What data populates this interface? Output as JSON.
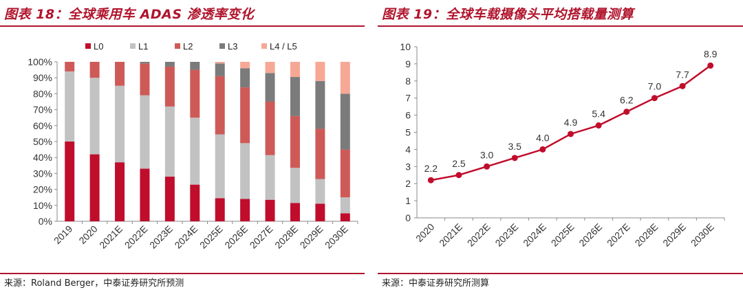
{
  "left_panel": {
    "title": "图表 18：全球乘用车 ADAS 渗透率变化",
    "source": "来源：Roland Berger，中泰证券研究所预测"
  },
  "right_panel": {
    "title": "图表 19：全球车载摄像头平均搭载量测算",
    "source": "来源：中泰证券研究所测算"
  },
  "colors": {
    "accent": "#b0142c",
    "L0": "#c00d2c",
    "L1": "#c2c2c2",
    "L2": "#ce5a58",
    "L3": "#7b7b7b",
    "L4_L5": "#f6a895",
    "line": "#c00d2c"
  },
  "chart_data": [
    {
      "type": "bar",
      "stacked": true,
      "percent": true,
      "title": "全球乘用车 ADAS 渗透率变化",
      "categories": [
        "2019",
        "2020",
        "2021E",
        "2022E",
        "2023E",
        "2024E",
        "2025E",
        "2026E",
        "2027E",
        "2028E",
        "2029E",
        "2030E"
      ],
      "series": [
        {
          "name": "L0",
          "values": [
            50,
            42,
            37,
            33,
            28,
            23,
            14.5,
            14,
            13.5,
            11.5,
            11,
            5
          ]
        },
        {
          "name": "L1",
          "values": [
            44,
            48,
            48,
            46,
            44,
            42,
            40,
            35,
            28,
            22,
            15.5,
            10
          ]
        },
        {
          "name": "L2",
          "values": [
            6,
            10,
            15,
            20,
            25,
            30,
            36.5,
            35,
            33.5,
            32.5,
            31.5,
            30
          ]
        },
        {
          "name": "L3",
          "values": [
            0,
            0,
            0,
            1,
            3,
            5,
            8,
            12,
            18,
            24.5,
            30,
            35
          ]
        },
        {
          "name": "L4 / L5",
          "values": [
            0,
            0,
            0,
            0,
            0,
            0,
            1,
            4,
            7,
            9.5,
            12,
            20
          ]
        }
      ],
      "ylim": [
        0,
        100
      ],
      "yticks": [
        "0%",
        "10%",
        "20%",
        "30%",
        "40%",
        "50%",
        "60%",
        "70%",
        "80%",
        "90%",
        "100%"
      ],
      "legend": "top",
      "xlabel": "",
      "ylabel": ""
    },
    {
      "type": "line",
      "title": "全球车载摄像头平均搭载量测算",
      "categories": [
        "2020",
        "2021E",
        "2022E",
        "2023E",
        "2024E",
        "2025E",
        "2026E",
        "2027E",
        "2028E",
        "2029E",
        "2030E"
      ],
      "values": [
        2.2,
        2.5,
        3.0,
        3.5,
        4.0,
        4.9,
        5.4,
        6.2,
        7.0,
        7.7,
        8.9
      ],
      "labels": [
        "2.2",
        "2.5",
        "3.0",
        "3.5",
        "4.0",
        "4.9",
        "5.4",
        "6.2",
        "7.0",
        "7.7",
        "8.9"
      ],
      "ylim": [
        0,
        10
      ],
      "yticks": [
        "0",
        "1",
        "2",
        "3",
        "4",
        "5",
        "6",
        "7",
        "8",
        "9",
        "10"
      ],
      "xlabel": "",
      "ylabel": ""
    }
  ]
}
